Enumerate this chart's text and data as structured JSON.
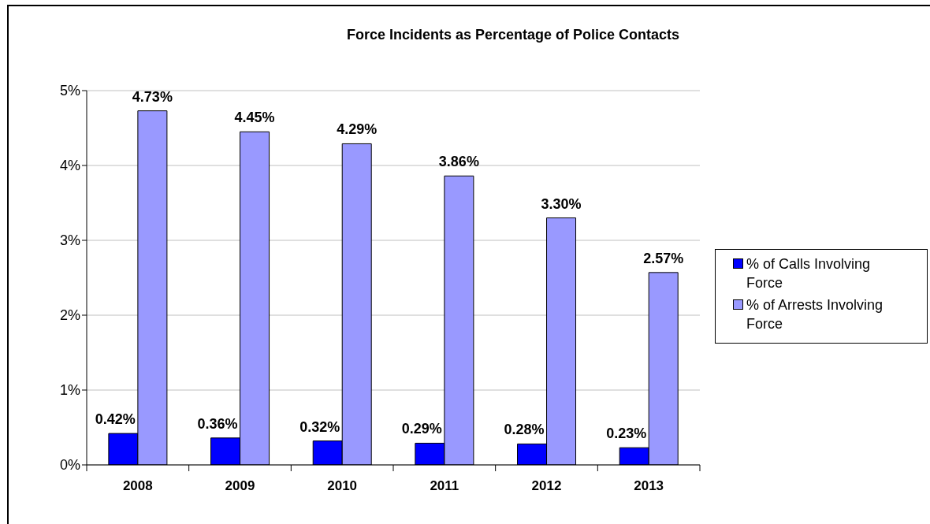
{
  "chart_data": {
    "type": "bar",
    "title": "Force Incidents as Percentage of Police Contacts",
    "categories": [
      "2008",
      "2009",
      "2010",
      "2011",
      "2012",
      "2013"
    ],
    "series": [
      {
        "name": "% of Calls Involving Force",
        "color": "#0000ff",
        "values": [
          0.42,
          0.36,
          0.32,
          0.29,
          0.28,
          0.23
        ],
        "value_labels": [
          "0.42%",
          "0.36%",
          "0.32%",
          "0.29%",
          "0.28%",
          "0.23%"
        ]
      },
      {
        "name": "% of Arrests Involving Force",
        "color": "#9999ff",
        "values": [
          4.73,
          4.45,
          4.29,
          3.86,
          3.3,
          2.57
        ],
        "value_labels": [
          "4.73%",
          "4.45%",
          "4.29%",
          "3.86%",
          "3.30%",
          "2.57%"
        ]
      }
    ],
    "ylim": [
      0,
      5
    ],
    "yticks": [
      {
        "value": 0,
        "label": "0%"
      },
      {
        "value": 1,
        "label": "1%"
      },
      {
        "value": 2,
        "label": "2%"
      },
      {
        "value": 3,
        "label": "3%"
      },
      {
        "value": 4,
        "label": "4%"
      },
      {
        "value": 5,
        "label": "5%"
      }
    ],
    "grid": "y",
    "legend": "right"
  }
}
